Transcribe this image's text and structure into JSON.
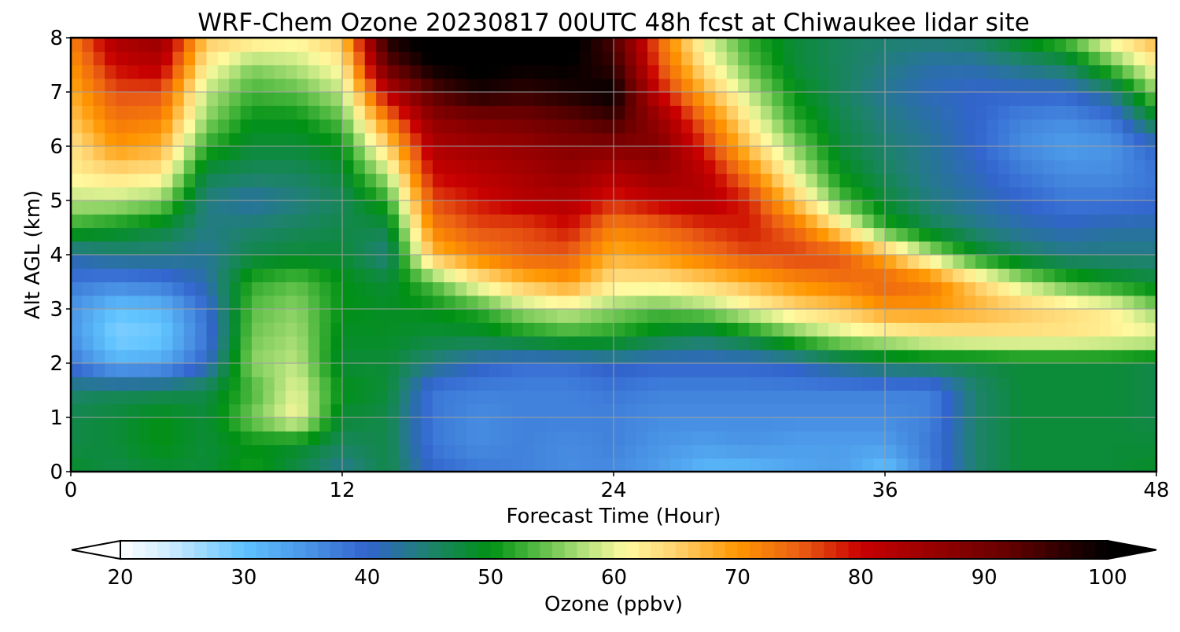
{
  "chart_data": {
    "type": "heatmap",
    "title": "WRF-Chem Ozone  20230817 00UTC 48h fcst at Chiwaukee lidar site",
    "xlabel": "Forecast Time (Hour)",
    "ylabel": "Alt AGL (km)",
    "xlim": [
      0,
      48
    ],
    "ylim": [
      0,
      8
    ],
    "x_ticks": [
      0,
      12,
      24,
      36,
      48
    ],
    "y_ticks": [
      0,
      1,
      2,
      3,
      4,
      5,
      6,
      7,
      8
    ],
    "grid": true,
    "x": [
      0,
      2,
      4,
      6,
      8,
      10,
      12,
      14,
      16,
      18,
      20,
      22,
      24,
      26,
      28,
      30,
      32,
      34,
      36,
      38,
      40,
      42,
      44,
      46,
      48
    ],
    "y": [
      0,
      0.5,
      1,
      1.5,
      2,
      2.5,
      3,
      3.5,
      4,
      4.5,
      5,
      5.5,
      6,
      6.5,
      7,
      7.5,
      8
    ],
    "z": [
      [
        49,
        47,
        48,
        48,
        51,
        47,
        43,
        47,
        40,
        38,
        37,
        36,
        36,
        34,
        31,
        31,
        33,
        34,
        30,
        37,
        45,
        48,
        48,
        48,
        49
      ],
      [
        47,
        48,
        50,
        48,
        50,
        49,
        46,
        47,
        38,
        36,
        37,
        36,
        37,
        35,
        34,
        35,
        34,
        34,
        34,
        38,
        45,
        48,
        48,
        48,
        48
      ],
      [
        47,
        48,
        50,
        48,
        55,
        61,
        48,
        47,
        38,
        36,
        37,
        37,
        37,
        36,
        36,
        36,
        36,
        36,
        36,
        37,
        45,
        48,
        48,
        48,
        47
      ],
      [
        45,
        46,
        46,
        47,
        53,
        60,
        50,
        48,
        38,
        37,
        37,
        37,
        38,
        37,
        37,
        37,
        37,
        37,
        37,
        37,
        45,
        48,
        48,
        48,
        47
      ],
      [
        38,
        32,
        33,
        40,
        56,
        58,
        48,
        48,
        44,
        41,
        39,
        39,
        41,
        40,
        40,
        40,
        41,
        44,
        46,
        47,
        47,
        48,
        48,
        48,
        47
      ],
      [
        35,
        28,
        29,
        38,
        55,
        57,
        49,
        49,
        48,
        48,
        50,
        52,
        51,
        48,
        46,
        49,
        54,
        58,
        60,
        62,
        63,
        63,
        63,
        62,
        61
      ],
      [
        35,
        30,
        31,
        39,
        54,
        56,
        50,
        49,
        50,
        52,
        57,
        59,
        56,
        54,
        56,
        60,
        64,
        66,
        70,
        70,
        68,
        66,
        64,
        62,
        56
      ],
      [
        38,
        37,
        38,
        42,
        52,
        54,
        50,
        48,
        54,
        62,
        67,
        70,
        63,
        63,
        65,
        68,
        71,
        73,
        75,
        73,
        65,
        58,
        53,
        50,
        48
      ],
      [
        42,
        44,
        44,
        43,
        47,
        48,
        48,
        44,
        67,
        72,
        75,
        75,
        68,
        70,
        73,
        76,
        77,
        76,
        68,
        58,
        50,
        46,
        44,
        44,
        44
      ],
      [
        52,
        50,
        48,
        44,
        45,
        46,
        47,
        47,
        72,
        76,
        76,
        79,
        72,
        74,
        77,
        79,
        74,
        64,
        52,
        47,
        44,
        42,
        41,
        42,
        42
      ],
      [
        58,
        58,
        56,
        44,
        42,
        44,
        46,
        52,
        76,
        79,
        82,
        83,
        78,
        81,
        83,
        78,
        66,
        54,
        48,
        44,
        42,
        40,
        38,
        38,
        39
      ],
      [
        62,
        64,
        63,
        47,
        46,
        46,
        48,
        58,
        80,
        82,
        84,
        86,
        83,
        86,
        82,
        72,
        60,
        50,
        46,
        43,
        41,
        38,
        36,
        36,
        38
      ],
      [
        63,
        70,
        68,
        52,
        48,
        48,
        50,
        65,
        83,
        85,
        86,
        88,
        88,
        88,
        78,
        66,
        56,
        48,
        45,
        43,
        40,
        36,
        34,
        35,
        40
      ],
      [
        66,
        73,
        72,
        56,
        50,
        50,
        54,
        72,
        87,
        89,
        90,
        92,
        95,
        86,
        74,
        62,
        52,
        47,
        44,
        42,
        40,
        37,
        36,
        38,
        48
      ],
      [
        68,
        76,
        76,
        58,
        53,
        54,
        58,
        82,
        93,
        98,
        96,
        98,
        100,
        80,
        68,
        58,
        50,
        46,
        43,
        41,
        40,
        40,
        40,
        44,
        56
      ],
      [
        70,
        80,
        82,
        62,
        56,
        58,
        62,
        92,
        100,
        101,
        100,
        100,
        96,
        76,
        63,
        54,
        48,
        46,
        44,
        42,
        42,
        44,
        46,
        54,
        62
      ],
      [
        72,
        84,
        86,
        66,
        64,
        62,
        66,
        98,
        102,
        103,
        102,
        102,
        94,
        74,
        60,
        52,
        48,
        46,
        45,
        45,
        46,
        50,
        54,
        62,
        68
      ]
    ],
    "colorbar": {
      "label": "Ozone  (ppbv)",
      "min": 20,
      "max": 100,
      "ticks": [
        20,
        30,
        40,
        50,
        60,
        70,
        80,
        90,
        100
      ],
      "extend": "both"
    }
  }
}
